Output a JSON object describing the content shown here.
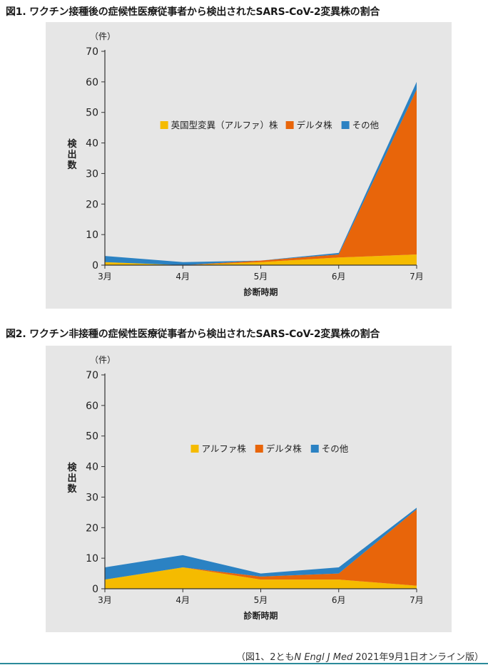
{
  "figures": [
    {
      "title": "図1. ワクチン接種後の症候性医療従事者から検出されたSARS-CoV-2変異株の割合"
    },
    {
      "title": "図2. ワクチン非接種の症候性医療従事者から検出されたSARS-CoV-2変異株の割合"
    }
  ],
  "source": {
    "prefix": "（図1、2とも",
    "journal": "N Engl J Med",
    "suffix": " 2021年9月1日オンライン版）"
  },
  "colors": {
    "alpha": "#f5bb00",
    "delta": "#e8650a",
    "other": "#2b82c3"
  },
  "chart_data": [
    {
      "type": "area",
      "stacked": true,
      "unit_label": "（件）",
      "ylabel": "検出数",
      "xlabel": "診断時期",
      "categories": [
        "3月",
        "4月",
        "5月",
        "6月",
        "7月"
      ],
      "ylim": [
        0,
        70
      ],
      "yticks": [
        0,
        10,
        20,
        30,
        40,
        50,
        60,
        70
      ],
      "legend_position": "inside-middle",
      "series": [
        {
          "name": "英国型変異（アルファ）株",
          "color_key": "alpha",
          "values": [
            1,
            0,
            1,
            2.5,
            3.5
          ]
        },
        {
          "name": "デルタ株",
          "color_key": "delta",
          "values": [
            0,
            0,
            0.5,
            1,
            54
          ]
        },
        {
          "name": "その他",
          "color_key": "other",
          "values": [
            2,
            1,
            0,
            0.5,
            2.5
          ]
        }
      ]
    },
    {
      "type": "area",
      "stacked": true,
      "unit_label": "（件）",
      "ylabel": "検出数",
      "xlabel": "診断時期",
      "categories": [
        "3月",
        "4月",
        "5月",
        "6月",
        "7月"
      ],
      "ylim": [
        0,
        70
      ],
      "yticks": [
        0,
        10,
        20,
        30,
        40,
        50,
        60,
        70
      ],
      "legend_position": "inside-middle",
      "series": [
        {
          "name": "アルファ株",
          "color_key": "alpha",
          "values": [
            3,
            7,
            3,
            3,
            1
          ]
        },
        {
          "name": "デルタ株",
          "color_key": "delta",
          "values": [
            0,
            0,
            1,
            2,
            25
          ]
        },
        {
          "name": "その他",
          "color_key": "other",
          "values": [
            4,
            4,
            1,
            2,
            0.5
          ]
        }
      ]
    }
  ]
}
